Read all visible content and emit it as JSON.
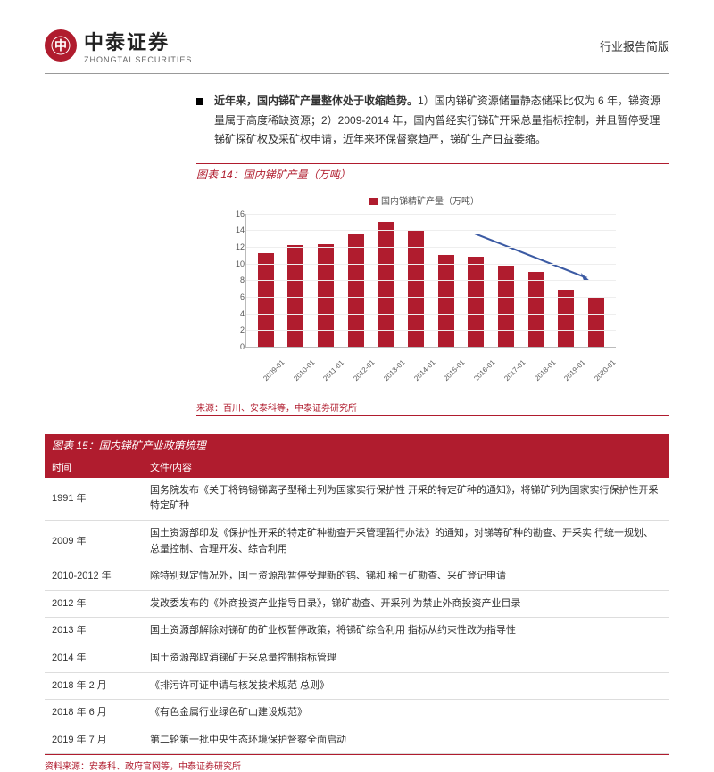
{
  "header": {
    "logo_cn": "中泰证券",
    "logo_en": "ZHONGTAI SECURITIES",
    "doc_type": "行业报告简版"
  },
  "paragraph": {
    "bold_lead": "近年来，国内锑矿产量整体处于收缩趋势。",
    "body": "1）国内锑矿资源储量静态储采比仅为 6 年，锑资源量属于高度稀缺资源；2）2009-2014 年，国内曾经实行锑矿开采总量指标控制，并且暂停受理锑矿探矿权及采矿权申请，近年来环保督察趋严，锑矿生产日益萎缩。"
  },
  "chart14": {
    "title": "图表 14：国内锑矿产量（万吨）",
    "legend_label": "国内锑精矿产量（万吨）",
    "type": "bar",
    "ylim": [
      0,
      16
    ],
    "ytick_step": 2,
    "yticks": [
      0,
      2,
      4,
      6,
      8,
      10,
      12,
      14,
      16
    ],
    "categories": [
      "2009-01",
      "2010-01",
      "2011-01",
      "2012-01",
      "2013-01",
      "2014-01",
      "2015-01",
      "2016-01",
      "2017-01",
      "2018-01",
      "2019-01",
      "2020-01"
    ],
    "values": [
      11.3,
      12.2,
      12.3,
      13.5,
      15.0,
      14.0,
      11.0,
      10.8,
      9.8,
      9.0,
      6.8,
      6.0
    ],
    "bar_color": "#b01c2e",
    "grid_color": "#eeeeee",
    "axis_color": "#bbbbbb",
    "arrow_color": "#3b5aa3",
    "source": "来源：百川、安泰科等，中泰证券研究所"
  },
  "table15": {
    "title": "图表 15：国内锑矿产业政策梳理",
    "columns": [
      "时间",
      "文件/内容"
    ],
    "rows": [
      [
        "1991 年",
        "国务院发布《关于将钨锡锑离子型稀土列为国家实行保护性 开采的特定矿种的通知》，将锑矿列为国家实行保护性开采特定矿种"
      ],
      [
        "2009 年",
        "国土资源部印发《保护性开采的特定矿种勘查开采管理暂行办法》的通知，对锑等矿种的勘查、开采实 行统一规划、总量控制、合理开发、综合利用"
      ],
      [
        "2010-2012  年",
        "除特别规定情况外，国土资源部暂停受理新的钨、锑和 稀土矿勘查、采矿登记申请"
      ],
      [
        "2012 年",
        "发改委发布的《外商投资产业指导目录》，锑矿勘查、开采列 为禁止外商投资产业目录"
      ],
      [
        "2013 年",
        "国土资源部解除对锑矿的矿业权暂停政策，将锑矿综合利用 指标从约束性改为指导性"
      ],
      [
        "2014 年",
        "国土资源部取消锑矿开采总量控制指标管理"
      ],
      [
        "2018 年 2 月",
        "《排污许可证申请与核发技术规范  总则》"
      ],
      [
        "2018 年 6 月",
        "《有色金属行业绿色矿山建设规范》"
      ],
      [
        "2019 年 7 月",
        "第二轮第一批中央生态环境保护督察全面启动"
      ]
    ],
    "source": "资料来源：安泰科、政府官网等，中泰证券研究所",
    "header_bg": "#b01c2e",
    "header_color": "#ffffff",
    "border_color": "#dddddd"
  }
}
